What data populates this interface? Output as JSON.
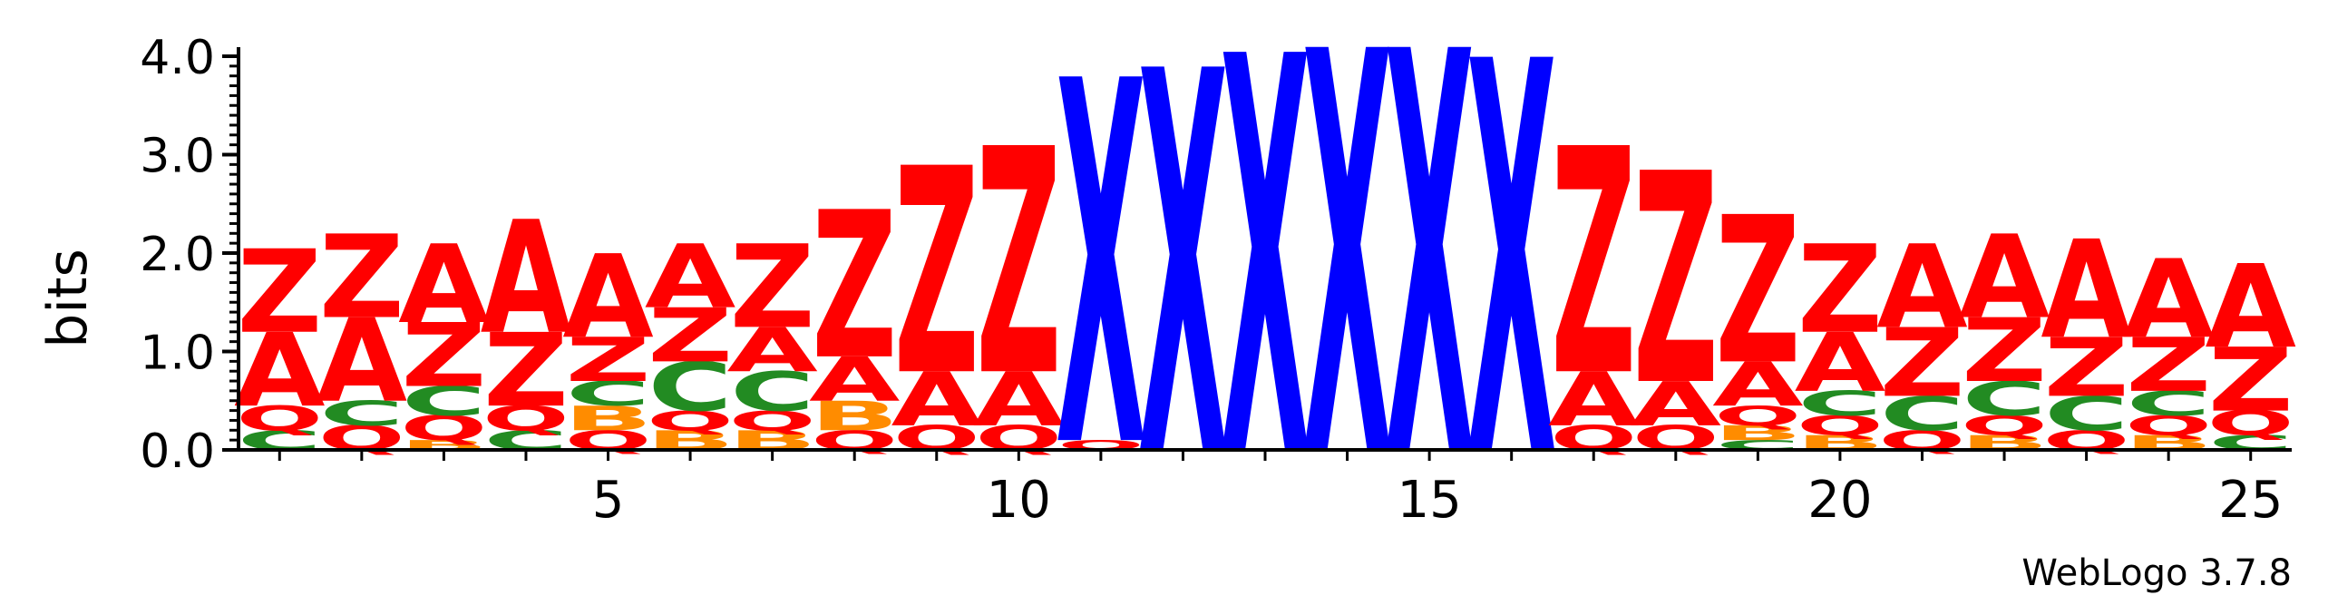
{
  "chart_data": {
    "type": "sequence_logo",
    "ylabel": "bits",
    "ylim": [
      0,
      4.0
    ],
    "y_ticks": [
      "0.0",
      "1.0",
      "2.0",
      "3.0",
      "4.0"
    ],
    "x_ticks": [
      "5",
      "10",
      "15",
      "20",
      "25"
    ],
    "x_tick_positions": [
      5,
      10,
      15,
      20,
      25
    ],
    "positions": 25,
    "credit": "WebLogo 3.7.8",
    "colors": {
      "Z": "#ff0000",
      "A": "#ff0000",
      "Q": "#ff0000",
      "X": "#0000ff",
      "C": "#228b22",
      "B": "#ff8c00"
    },
    "stacks": [
      [
        [
          "C",
          0.2
        ],
        [
          "Q",
          0.25
        ],
        [
          "A",
          0.75
        ],
        [
          "Z",
          0.85
        ]
      ],
      [
        [
          "Q",
          0.25
        ],
        [
          "C",
          0.25
        ],
        [
          "A",
          0.85
        ],
        [
          "Z",
          0.85
        ]
      ],
      [
        [
          "B",
          0.1
        ],
        [
          "Q",
          0.25
        ],
        [
          "C",
          0.3
        ],
        [
          "Z",
          0.65
        ],
        [
          "A",
          0.8
        ]
      ],
      [
        [
          "C",
          0.2
        ],
        [
          "Q",
          0.25
        ],
        [
          "Z",
          0.75
        ],
        [
          "A",
          1.15
        ]
      ],
      [
        [
          "Q",
          0.2
        ],
        [
          "B",
          0.25
        ],
        [
          "C",
          0.25
        ],
        [
          "Z",
          0.45
        ],
        [
          "A",
          0.85
        ]
      ],
      [
        [
          "B",
          0.2
        ],
        [
          "Q",
          0.2
        ],
        [
          "C",
          0.5
        ],
        [
          "Z",
          0.55
        ],
        [
          "A",
          0.65
        ]
      ],
      [
        [
          "B",
          0.2
        ],
        [
          "Q",
          0.2
        ],
        [
          "C",
          0.4
        ],
        [
          "A",
          0.45
        ],
        [
          "Z",
          0.85
        ]
      ],
      [
        [
          "Q",
          0.2
        ],
        [
          "B",
          0.3
        ],
        [
          "A",
          0.45
        ],
        [
          "Z",
          1.5
        ]
      ],
      [
        [
          "Q",
          0.25
        ],
        [
          "A",
          0.55
        ],
        [
          "Z",
          2.1
        ]
      ],
      [
        [
          "Q",
          0.25
        ],
        [
          "A",
          0.55
        ],
        [
          "Z",
          2.3
        ]
      ],
      [
        [
          "Q",
          0.1
        ],
        [
          "X",
          3.7
        ]
      ],
      [
        [
          "X",
          3.9
        ]
      ],
      [
        [
          "X",
          4.05
        ]
      ],
      [
        [
          "X",
          4.1
        ]
      ],
      [
        [
          "X",
          4.1
        ]
      ],
      [
        [
          "X",
          4.0
        ]
      ],
      [
        [
          "Q",
          0.25
        ],
        [
          "A",
          0.55
        ],
        [
          "Z",
          2.3
        ]
      ],
      [
        [
          "Q",
          0.25
        ],
        [
          "A",
          0.45
        ],
        [
          "Z",
          2.15
        ]
      ],
      [
        [
          "C",
          0.1
        ],
        [
          "B",
          0.15
        ],
        [
          "Q",
          0.2
        ],
        [
          "A",
          0.45
        ],
        [
          "Z",
          1.5
        ]
      ],
      [
        [
          "B",
          0.15
        ],
        [
          "Q",
          0.2
        ],
        [
          "C",
          0.25
        ],
        [
          "A",
          0.6
        ],
        [
          "Z",
          0.9
        ]
      ],
      [
        [
          "Q",
          0.2
        ],
        [
          "C",
          0.35
        ],
        [
          "Z",
          0.7
        ],
        [
          "A",
          0.85
        ]
      ],
      [
        [
          "B",
          0.15
        ],
        [
          "Q",
          0.2
        ],
        [
          "C",
          0.35
        ],
        [
          "Z",
          0.65
        ],
        [
          "A",
          0.85
        ]
      ],
      [
        [
          "Q",
          0.2
        ],
        [
          "C",
          0.35
        ],
        [
          "Z",
          0.6
        ],
        [
          "A",
          1.0
        ]
      ],
      [
        [
          "B",
          0.15
        ],
        [
          "Q",
          0.2
        ],
        [
          "C",
          0.25
        ],
        [
          "Z",
          0.55
        ],
        [
          "A",
          0.8
        ]
      ],
      [
        [
          "C",
          0.15
        ],
        [
          "Q",
          0.25
        ],
        [
          "Z",
          0.65
        ],
        [
          "A",
          0.85
        ]
      ]
    ]
  }
}
